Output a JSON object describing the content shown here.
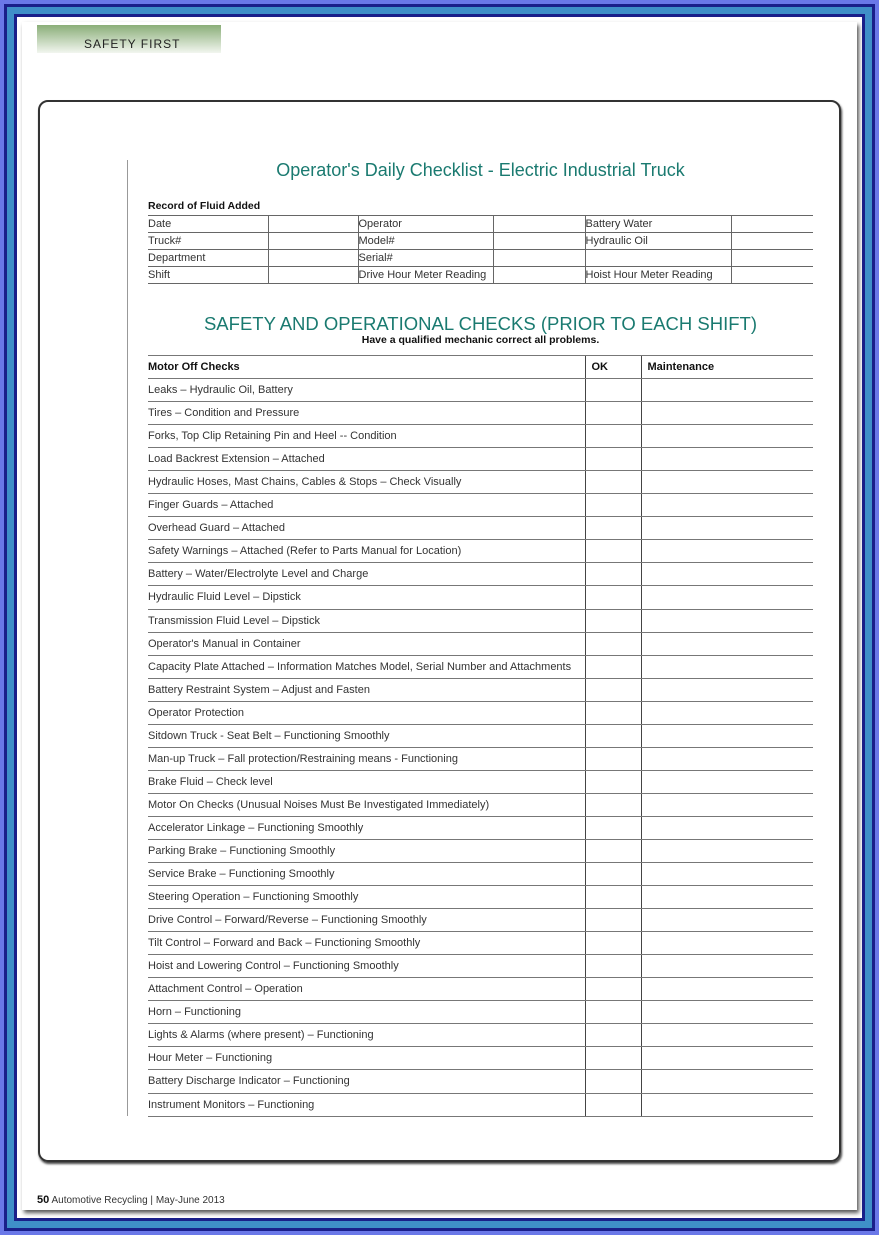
{
  "header": {
    "section": "SAFETY FIRST"
  },
  "title": "Operator's Daily Checklist - Electric Industrial Truck",
  "fluid": {
    "heading": "Record of Fluid Added",
    "rows": [
      [
        "Date",
        "",
        "Operator",
        "",
        "Battery Water",
        ""
      ],
      [
        "Truck#",
        "",
        "Model#",
        "",
        "Hydraulic Oil",
        ""
      ],
      [
        "Department",
        "",
        "Serial#",
        "",
        "",
        ""
      ],
      [
        "Shift",
        "",
        "Drive Hour Meter Reading",
        "",
        "Hoist Hour Meter Reading",
        ""
      ]
    ]
  },
  "checks": {
    "heading": "SAFETY AND OPERATIONAL CHECKS (PRIOR TO EACH SHIFT)",
    "subheading": "Have a qualified mechanic correct all problems.",
    "columns": [
      "Motor Off Checks",
      "OK",
      "Maintenance"
    ],
    "items": [
      "Leaks – Hydraulic Oil, Battery",
      "Tires – Condition and Pressure",
      "Forks, Top Clip Retaining Pin and Heel -- Condition",
      "Load Backrest Extension – Attached",
      "Hydraulic Hoses, Mast Chains, Cables & Stops – Check Visually",
      "Finger Guards – Attached",
      "Overhead Guard – Attached",
      "Safety Warnings – Attached (Refer to Parts Manual for Location)",
      "Battery – Water/Electrolyte Level and Charge",
      "Hydraulic Fluid Level – Dipstick",
      "Transmission Fluid Level – Dipstick",
      "Operator's Manual in Container",
      "Capacity Plate Attached – Information Matches Model, Serial Number and Attachments",
      "Battery Restraint System – Adjust and Fasten",
      "Operator Protection",
      "Sitdown Truck - Seat Belt – Functioning Smoothly",
      "Man-up Truck – Fall protection/Restraining means - Functioning",
      "Brake Fluid – Check level",
      "Motor On Checks (Unusual Noises Must Be Investigated Immediately)",
      "Accelerator Linkage – Functioning Smoothly",
      "Parking Brake – Functioning Smoothly",
      "Service Brake – Functioning Smoothly",
      "Steering Operation – Functioning Smoothly",
      "Drive Control – Forward/Reverse – Functioning Smoothly",
      "Tilt Control – Forward and Back – Functioning Smoothly",
      "Hoist and Lowering Control – Functioning Smoothly",
      "Attachment Control – Operation",
      "Horn – Functioning",
      "Lights & Alarms (where present) – Functioning",
      "Hour Meter – Functioning",
      "Battery Discharge Indicator – Functioning",
      "Instrument Monitors – Functioning"
    ]
  },
  "footer": {
    "page": "50",
    "publication": "Automotive Recycling",
    "separator": "|",
    "issue": "May-June 2013"
  },
  "colors": {
    "accent": "#1a7a70",
    "frame": "#6a78e8",
    "banner": "#8aae78"
  }
}
